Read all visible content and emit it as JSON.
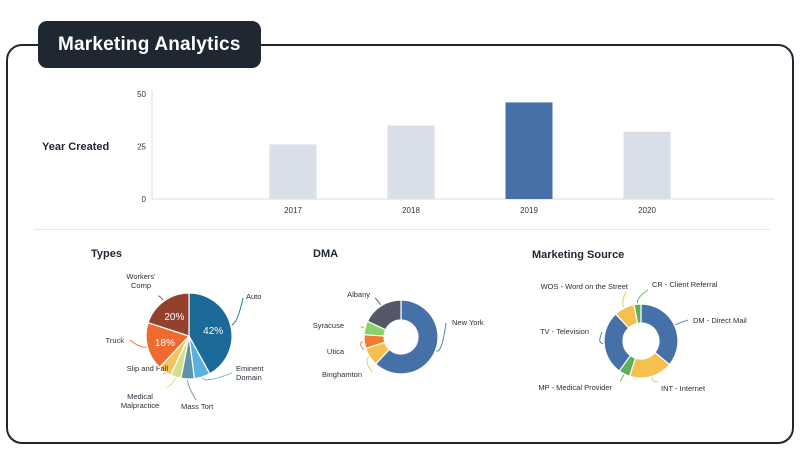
{
  "page": {
    "title": "Marketing Analytics"
  },
  "bar_section": {
    "row_label": "Year Created"
  },
  "pie_sections": {
    "types": "Types",
    "dma": "DMA",
    "source": "Marketing Source"
  },
  "chart_data": [
    {
      "type": "bar",
      "categories": [
        "2017",
        "2018",
        "2019",
        "2020"
      ],
      "values": [
        26,
        35,
        46,
        32
      ],
      "ylabel": "Year Created",
      "yticks": [
        "0",
        "25",
        "50"
      ],
      "ylim": [
        0,
        50
      ],
      "highlight_index": 2,
      "colors": {
        "normal": "#d8dfe8",
        "highlight": "#4670a8"
      }
    },
    {
      "type": "pie",
      "title": "Types",
      "slices": [
        {
          "label": "Auto",
          "value": 42,
          "color": "#1b6a99",
          "pct_label": "42%"
        },
        {
          "label": "Eminent Domain",
          "value": 6,
          "color": "#5ab1dd"
        },
        {
          "label": "Mass Tort",
          "value": 5,
          "color": "#5f94a8"
        },
        {
          "label": "Medical Malpractice",
          "value": 4,
          "color": "#cfe18a"
        },
        {
          "label": "Slip and Fall",
          "value": 5,
          "color": "#f2c35f"
        },
        {
          "label": "Truck",
          "value": 18,
          "color": "#ef6a2f",
          "pct_label": "18%"
        },
        {
          "label": "Workers' Comp",
          "value": 20,
          "color": "#93402d",
          "pct_label": "20%"
        }
      ]
    },
    {
      "type": "pie",
      "title": "DMA",
      "donut": true,
      "slices": [
        {
          "label": "New York",
          "value": 62,
          "color": "#4670a8"
        },
        {
          "label": "Binghamton",
          "value": 8,
          "color": "#f5c04d"
        },
        {
          "label": "Utica",
          "value": 6,
          "color": "#ef7a30"
        },
        {
          "label": "Syracuse",
          "value": 6,
          "color": "#86d56b"
        },
        {
          "label": "Albany",
          "value": 18,
          "color": "#545867"
        }
      ]
    },
    {
      "type": "pie",
      "title": "Marketing Source",
      "donut": true,
      "slices": [
        {
          "label": "DM - Direct Mail",
          "value": 36,
          "color": "#4670a8"
        },
        {
          "label": "INT - Internet",
          "value": 19,
          "color": "#f5c04d"
        },
        {
          "label": "MP - Medical Provider",
          "value": 5,
          "color": "#5fae5a"
        },
        {
          "label": "TV - Television",
          "value": 28,
          "color": "#4670a8"
        },
        {
          "label": "WOS - Word on the Street",
          "value": 9,
          "color": "#f5c04d"
        },
        {
          "label": "CR - Client Referral",
          "value": 3,
          "color": "#5fae5a"
        }
      ]
    }
  ]
}
